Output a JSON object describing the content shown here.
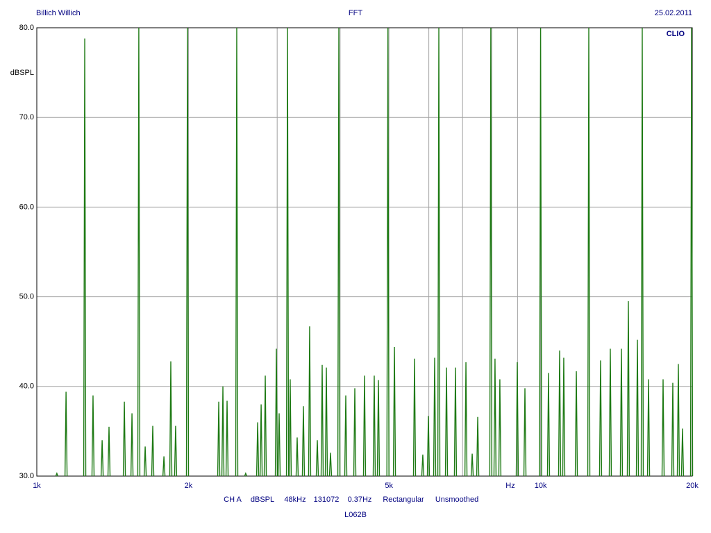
{
  "chart_data": {
    "type": "spectrum",
    "title": "FFT",
    "header_left": "Billich Willich",
    "date": "25.02.2011",
    "logo": "CLIO",
    "ylabel": "dBSPL",
    "xlabel": "Hz",
    "settings": [
      "CH A",
      "dBSPL",
      "48kHz",
      "131072",
      "0.37Hz",
      "Rectangular",
      "Unsmoothed"
    ],
    "footnote": "L062B",
    "log_x": true,
    "grid": true,
    "color": "#1e7a14",
    "xlim": [
      1000,
      20000
    ],
    "ylim": [
      30,
      80
    ],
    "xticks": [
      {
        "value": 1000,
        "label": "1k"
      },
      {
        "value": 2000,
        "label": "2k"
      },
      {
        "value": 5000,
        "label": "5k"
      },
      {
        "value": 10000,
        "label": "10k"
      },
      {
        "value": 20000,
        "label": "20k"
      }
    ],
    "xgrid": [
      3000,
      4000,
      6000,
      7000,
      8000,
      9000
    ],
    "yticks": [
      {
        "value": 30,
        "label": "30.0"
      },
      {
        "value": 40,
        "label": "40.0"
      },
      {
        "value": 50,
        "label": "50.0"
      },
      {
        "value": 60,
        "label": "60.0"
      },
      {
        "value": 70,
        "label": "70.0"
      },
      {
        "value": 80,
        "label": "80.0"
      }
    ],
    "x": [
      1096,
      1143,
      1245,
      1293,
      1348,
      1391,
      1492,
      1545,
      1594,
      1641,
      1699,
      1788,
      1845,
      1886,
      1991,
      2297,
      2341,
      2386,
      2494,
      2598,
      2744,
      2788,
      2841,
      2989,
      3027,
      3145,
      3184,
      3287,
      3382,
      3480,
      3604,
      3685,
      3756,
      3828,
      3977,
      4105,
      4278,
      4472,
      4675,
      4765,
      4977,
      5127,
      5620,
      5837,
      5988,
      6162,
      6281,
      6504,
      6776,
      7109,
      7315,
      7503,
      7965,
      8119,
      8301,
      8989,
      9309,
      10000,
      10368,
      10909,
      11117,
      11774,
      12465,
      13154,
      13752,
      14467,
      14934,
      15565,
      15913,
      16378,
      17504,
      18299,
      18768,
      19128,
      19938
    ],
    "values": [
      30.3,
      39.4,
      78.8,
      39.0,
      34.0,
      35.5,
      38.3,
      37.0,
      80,
      33.3,
      35.6,
      32.2,
      42.8,
      35.6,
      80,
      38.3,
      40.0,
      38.4,
      80,
      30.3,
      36.0,
      38.0,
      41.2,
      44.2,
      37.0,
      80,
      40.8,
      34.3,
      37.8,
      46.7,
      34.0,
      42.4,
      42.1,
      32.6,
      80,
      39.0,
      39.8,
      41.2,
      41.2,
      40.7,
      80,
      44.4,
      43.1,
      32.4,
      36.7,
      43.2,
      80,
      42.1,
      42.1,
      42.7,
      32.5,
      36.6,
      80,
      43.1,
      40.8,
      42.7,
      39.8,
      80,
      41.5,
      44.0,
      43.2,
      41.7,
      80,
      42.9,
      44.2,
      44.2,
      49.5,
      45.2,
      80,
      40.8,
      40.8,
      40.4,
      42.5,
      35.3,
      80
    ]
  }
}
